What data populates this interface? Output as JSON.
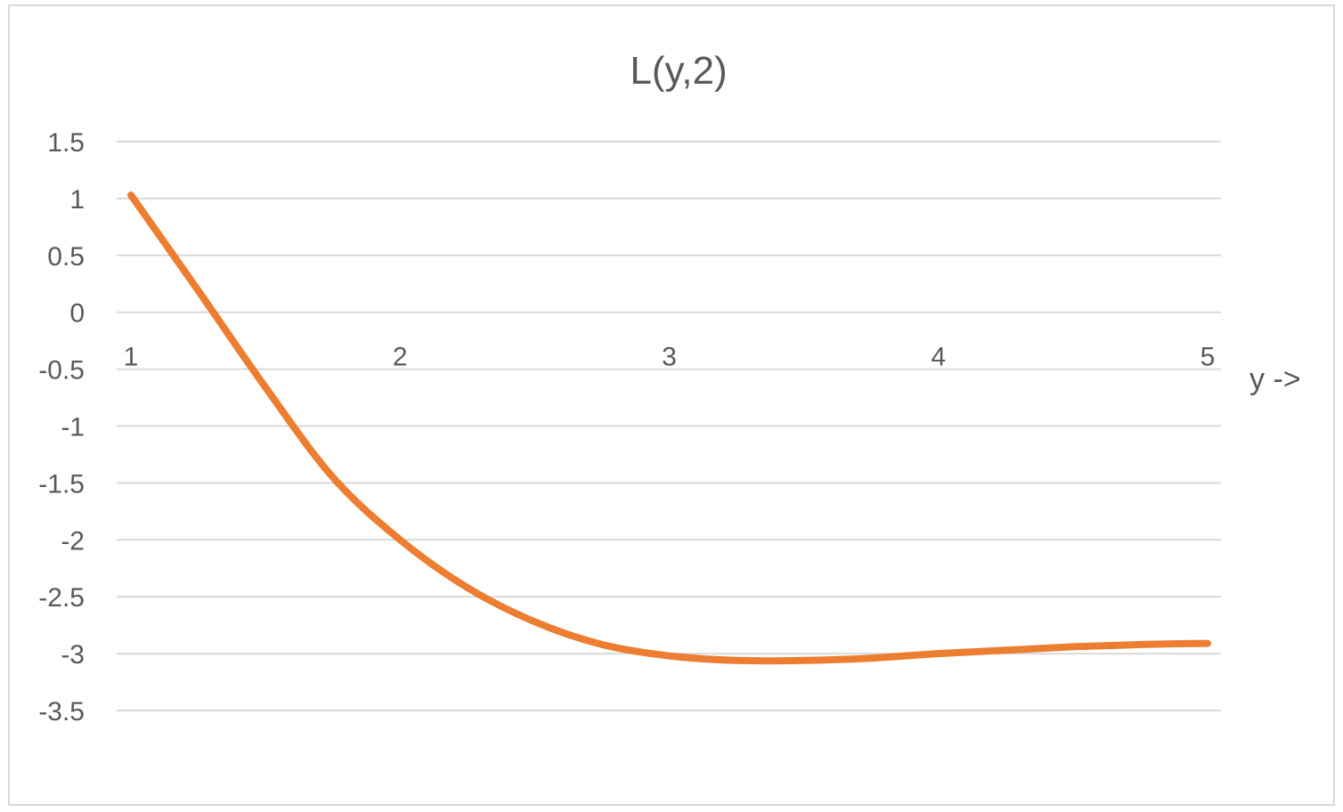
{
  "chart_data": {
    "type": "line",
    "title": "L(y,2)",
    "xlabel": "y ->",
    "ylabel": "",
    "xlim": [
      1,
      5
    ],
    "ylim": [
      -3.5,
      1.5
    ],
    "x_ticks": [
      "1",
      "2",
      "3",
      "4",
      "5"
    ],
    "y_ticks": [
      "1.5",
      "1",
      "0.5",
      "0",
      "-0.5",
      "-1",
      "-1.5",
      "-2",
      "-2.5",
      "-3",
      "-3.5"
    ],
    "grid": true,
    "legend": "none",
    "line_color": "#ED7D31",
    "series": [
      {
        "x": [
          1,
          1.25,
          1.5,
          1.75,
          2,
          2.25,
          2.5,
          2.75,
          3,
          3.25,
          3.5,
          3.75,
          4,
          4.25,
          4.5,
          4.75,
          5
        ],
        "y": [
          1.03,
          0.19,
          -0.66,
          -1.45,
          -2.0,
          -2.42,
          -2.72,
          -2.92,
          -3.02,
          -3.06,
          -3.06,
          -3.04,
          -3.0,
          -2.97,
          -2.94,
          -2.92,
          -2.91
        ]
      }
    ]
  }
}
